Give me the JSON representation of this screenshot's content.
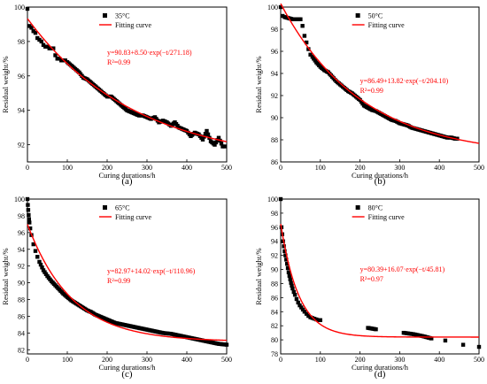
{
  "figure": {
    "panel_labels": [
      "(a)",
      "(b)",
      "(c)",
      "(d)"
    ]
  },
  "chart_data": [
    {
      "type": "scatter",
      "panel": "(a)",
      "xlabel": "Curing durations/h",
      "ylabel": "Residual weight/%",
      "xlim": [
        0,
        500
      ],
      "ylim": [
        91,
        100
      ],
      "xticks": [
        0,
        100,
        200,
        300,
        400,
        500
      ],
      "yticks": [
        92,
        94,
        96,
        98,
        100
      ],
      "legend": {
        "position": "top-right",
        "entries": [
          "35°C",
          "Fitting curve"
        ]
      },
      "annotation": {
        "equation": "y=90.83+8.50·exp(−t/271.18)",
        "r2": "R²=0.99"
      },
      "fit": {
        "a": 90.83,
        "b": 8.5,
        "tau": 271.18
      },
      "series": [
        {
          "name": "35°C",
          "kind": "points",
          "x": [
            0,
            5,
            10,
            15,
            20,
            25,
            30,
            35,
            40,
            45,
            50,
            55,
            60,
            65,
            70,
            75,
            80,
            85,
            90,
            95,
            100,
            110,
            120,
            130,
            140,
            150,
            160,
            170,
            180,
            190,
            200,
            210,
            220,
            230,
            240,
            250,
            260,
            270,
            280,
            290,
            300,
            310,
            320,
            330,
            340,
            350,
            360,
            370,
            380,
            390,
            400,
            410,
            420,
            430,
            440,
            450,
            460,
            470,
            480,
            490,
            495
          ],
          "y": [
            99.9,
            98.9,
            98.8,
            98.6,
            98.5,
            98.2,
            98.1,
            98.0,
            97.8,
            97.7,
            97.7,
            97.6,
            97.6,
            97.6,
            97.2,
            97.0,
            97.0,
            96.9,
            96.9,
            96.9,
            96.8,
            96.6,
            96.4,
            96.2,
            95.9,
            95.8,
            95.6,
            95.4,
            95.2,
            95.0,
            94.8,
            94.8,
            94.6,
            94.4,
            94.2,
            94.0,
            93.9,
            93.8,
            93.7,
            93.7,
            93.6,
            93.5,
            93.6,
            93.3,
            93.4,
            93.3,
            93.1,
            93.3,
            93.0,
            92.9,
            92.8,
            92.5,
            92.7,
            92.6,
            92.3,
            92.8,
            92.2,
            92.0,
            92.4,
            91.9,
            91.9
          ]
        },
        {
          "name": "Fitting curve",
          "kind": "line"
        }
      ]
    },
    {
      "type": "scatter",
      "panel": "(b)",
      "xlabel": "Curing durations/h",
      "ylabel": "Residual weight/%",
      "xlim": [
        0,
        500
      ],
      "ylim": [
        86,
        100
      ],
      "xticks": [
        0,
        100,
        200,
        300,
        400,
        500
      ],
      "yticks": [
        86,
        88,
        90,
        92,
        94,
        96,
        98,
        100
      ],
      "legend": {
        "position": "top-right",
        "entries": [
          "50°C",
          "Fitting curve"
        ]
      },
      "annotation": {
        "equation": "y=86.49+13.82·exp(−t/204.10)",
        "r2": "R²=0.99"
      },
      "fit": {
        "a": 86.49,
        "b": 13.82,
        "tau": 204.1
      },
      "series": [
        {
          "name": "50°C",
          "kind": "points",
          "x": [
            0,
            5,
            10,
            20,
            30,
            40,
            50,
            55,
            60,
            65,
            70,
            75,
            80,
            90,
            100,
            110,
            120,
            130,
            140,
            150,
            160,
            170,
            180,
            190,
            200,
            210,
            220,
            230,
            240,
            250,
            260,
            270,
            280,
            290,
            300,
            310,
            320,
            330,
            340,
            350,
            360,
            370,
            380,
            390,
            400,
            410,
            420,
            430,
            440,
            445
          ],
          "y": [
            100,
            99.2,
            99.1,
            99.0,
            98.9,
            98.9,
            98.9,
            98.3,
            97.4,
            96.8,
            96.2,
            95.7,
            95.5,
            95.0,
            94.6,
            94.3,
            94.1,
            93.7,
            93.3,
            93.0,
            92.7,
            92.4,
            92.2,
            91.9,
            91.6,
            91.1,
            90.9,
            90.7,
            90.6,
            90.4,
            90.2,
            90.0,
            89.8,
            89.7,
            89.5,
            89.4,
            89.3,
            89.1,
            89.0,
            88.9,
            88.8,
            88.7,
            88.6,
            88.5,
            88.4,
            88.3,
            88.2,
            88.2,
            88.1,
            88.1
          ]
        },
        {
          "name": "Fitting curve",
          "kind": "line"
        }
      ]
    },
    {
      "type": "scatter",
      "panel": "(c)",
      "xlabel": "Curing durations/h",
      "ylabel": "Residual weight/%",
      "xlim": [
        0,
        500
      ],
      "ylim": [
        81.5,
        100
      ],
      "xticks": [
        0,
        100,
        200,
        300,
        400,
        500
      ],
      "yticks": [
        82,
        84,
        86,
        88,
        90,
        92,
        94,
        96,
        98,
        100
      ],
      "legend": {
        "position": "top-right",
        "entries": [
          "65°C",
          "Fitting curve"
        ]
      },
      "annotation": {
        "equation": "y=82.97+14.02·exp(−t/110.96)",
        "r2": "R²=0.99"
      },
      "fit": {
        "a": 82.97,
        "b": 14.02,
        "tau": 110.96
      },
      "series": [
        {
          "name": "65°C",
          "kind": "points",
          "x": [
            0,
            1,
            2,
            3,
            4,
            5,
            7,
            10,
            15,
            20,
            25,
            30,
            40,
            50,
            60,
            70,
            80,
            90,
            100,
            110,
            120,
            130,
            140,
            150,
            160,
            170,
            180,
            190,
            200,
            210,
            220,
            230,
            240,
            250,
            260,
            270,
            280,
            290,
            300,
            320,
            340,
            360,
            380,
            400,
            420,
            440,
            460,
            480,
            500
          ],
          "y": [
            100,
            99.3,
            98.7,
            98.1,
            97.6,
            97.2,
            96.5,
            95.7,
            94.6,
            93.8,
            93.1,
            92.5,
            91.5,
            90.8,
            90.2,
            89.7,
            89.2,
            88.7,
            88.3,
            87.9,
            87.6,
            87.3,
            87.0,
            86.7,
            86.5,
            86.2,
            86.0,
            85.8,
            85.6,
            85.4,
            85.2,
            85.1,
            85.0,
            84.9,
            84.8,
            84.7,
            84.6,
            84.5,
            84.4,
            84.2,
            84.0,
            83.9,
            83.7,
            83.5,
            83.3,
            83.1,
            82.9,
            82.7,
            82.6
          ]
        },
        {
          "name": "Fitting curve",
          "kind": "line"
        }
      ]
    },
    {
      "type": "scatter",
      "panel": "(d)",
      "xlabel": "Curing durations/h",
      "ylabel": "Residual weight/%",
      "xlim": [
        0,
        500
      ],
      "ylim": [
        78,
        100
      ],
      "xticks": [
        0,
        100,
        200,
        300,
        400,
        500
      ],
      "yticks": [
        78,
        80,
        82,
        84,
        86,
        88,
        90,
        92,
        94,
        96,
        98,
        100
      ],
      "legend": {
        "position": "top-right",
        "entries": [
          "80°C",
          "Fitting curve"
        ]
      },
      "annotation": {
        "equation": "y=80.39+16.07·exp(−t/45.81)",
        "r2": "R²=0.97"
      },
      "fit": {
        "a": 80.39,
        "b": 16.07,
        "tau": 45.81
      },
      "series": [
        {
          "name": "80°C",
          "kind": "points",
          "x": [
            0,
            2,
            4,
            6,
            8,
            10,
            12,
            14,
            16,
            18,
            20,
            22,
            24,
            26,
            28,
            30,
            33,
            36,
            40,
            44,
            48,
            52,
            56,
            60,
            65,
            70,
            75,
            80,
            85,
            90,
            95,
            100,
            220,
            240,
            310,
            335,
            360,
            380,
            415,
            460,
            500
          ],
          "y": [
            100,
            96.0,
            95.0,
            94.0,
            93.3,
            92.6,
            92.0,
            91.4,
            90.8,
            90.2,
            89.6,
            89.1,
            88.6,
            88.1,
            87.7,
            87.3,
            86.8,
            86.4,
            85.8,
            85.3,
            84.9,
            84.6,
            84.3,
            84.0,
            83.7,
            83.4,
            83.2,
            83.1,
            83.0,
            82.9,
            82.8,
            82.8,
            81.7,
            81.5,
            81.0,
            80.8,
            80.5,
            80.2,
            79.9,
            79.3,
            79.0
          ]
        },
        {
          "name": "Fitting curve",
          "kind": "line"
        }
      ]
    }
  ]
}
